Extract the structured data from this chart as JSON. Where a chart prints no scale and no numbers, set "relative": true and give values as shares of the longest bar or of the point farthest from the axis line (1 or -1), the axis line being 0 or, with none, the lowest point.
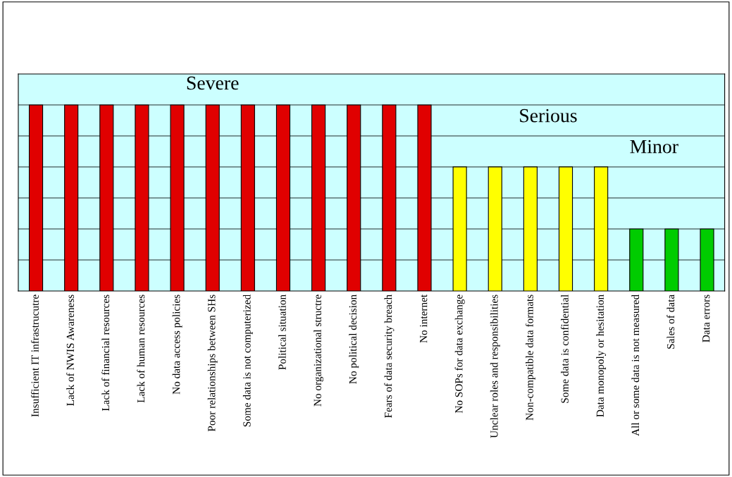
{
  "chart_data": {
    "type": "bar",
    "relative": true,
    "grid": "y",
    "categories": [
      "Insufficient IT infrastrucutre",
      "Lack of NWIS Awareness",
      "Lack of financial resources",
      "Lack of human resources",
      "No data access policies",
      "Poor relationships between SHs",
      "Some data is not computerized",
      "Political situation",
      "No organizational structre",
      "No political decision",
      "Fears of data security breach",
      "No internet",
      "No SOPs for data exchange",
      "Unclear roles and responsibilities",
      "Non-compatible data formats",
      "Some data is confidential",
      "Data monopoly or hesitation",
      "All or some data is not measured",
      "Sales of data",
      "Data errors"
    ],
    "values": [
      1,
      1,
      1,
      1,
      1,
      1,
      1,
      1,
      1,
      1,
      1,
      1,
      0.667,
      0.667,
      0.667,
      0.667,
      0.667,
      0.333,
      0.333,
      0.333
    ],
    "colors": [
      "#e00000",
      "#e00000",
      "#e00000",
      "#e00000",
      "#e00000",
      "#e00000",
      "#e00000",
      "#e00000",
      "#e00000",
      "#e00000",
      "#e00000",
      "#e00000",
      "#ffff00",
      "#ffff00",
      "#ffff00",
      "#ffff00",
      "#ffff00",
      "#00cc00",
      "#00cc00",
      "#00cc00"
    ],
    "annotations": [
      "Severe",
      "Serious",
      "Minor"
    ]
  }
}
